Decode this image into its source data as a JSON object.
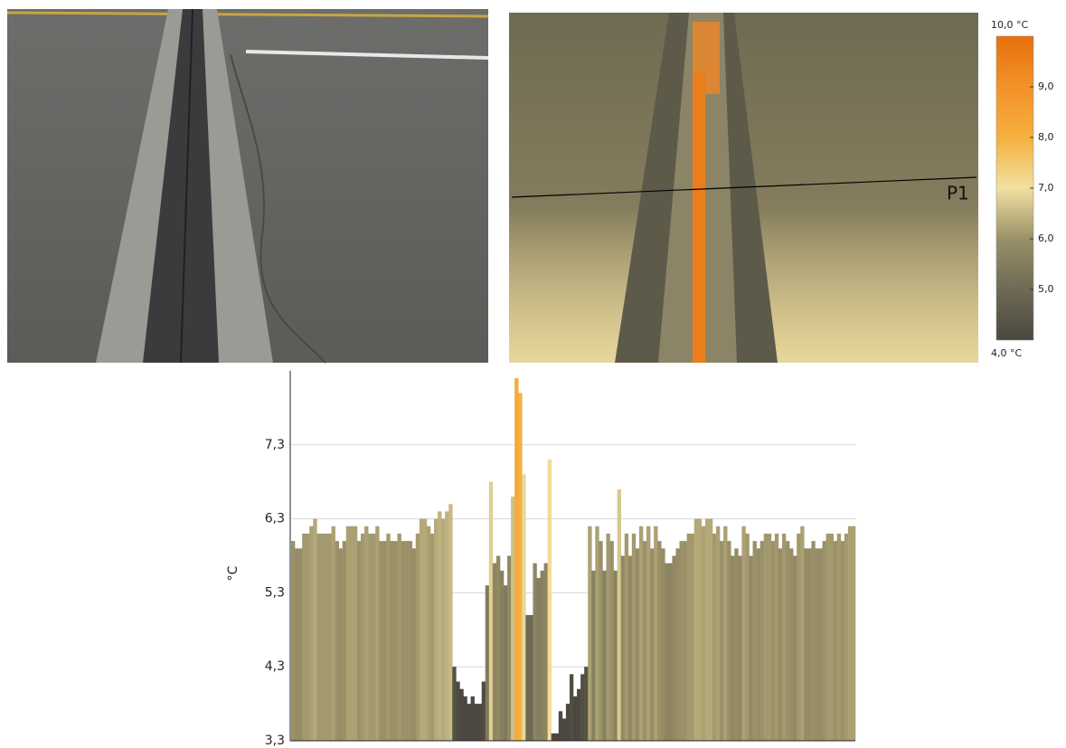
{
  "thermal_image": {
    "marker_label": "P1"
  },
  "colorbar": {
    "lim": [
      {
        "value": 4,
        "label": "4,0 °C"
      },
      {
        "value": 10,
        "label": "10,0 °C"
      }
    ],
    "ticks": [
      {
        "value": 5,
        "label": "5,0"
      },
      {
        "value": 6,
        "label": "6,0"
      },
      {
        "value": 7,
        "label": "7,0"
      },
      {
        "value": 8,
        "label": "8,0"
      },
      {
        "value": 9,
        "label": "9,0"
      }
    ],
    "colors": [
      "#4a4840",
      "#6e6a55",
      "#9a9168",
      "#f1e0a0",
      "#f5b040",
      "#f29228",
      "#e8700e"
    ]
  },
  "chart_data": {
    "type": "bar",
    "ylabel": "°C",
    "values": [
      6.0,
      5.9,
      5.9,
      6.1,
      6.1,
      6.2,
      6.3,
      6.1,
      6.1,
      6.1,
      6.1,
      6.2,
      6.0,
      5.9,
      6.0,
      6.2,
      6.2,
      6.2,
      6.0,
      6.1,
      6.2,
      6.1,
      6.1,
      6.2,
      6.0,
      6.0,
      6.1,
      6.0,
      6.0,
      6.1,
      6.0,
      6.0,
      6.0,
      5.9,
      6.1,
      6.3,
      6.3,
      6.2,
      6.1,
      6.3,
      6.4,
      6.3,
      6.4,
      6.5,
      4.3,
      4.1,
      4.0,
      3.9,
      3.8,
      3.9,
      3.8,
      3.8,
      4.1,
      5.4,
      6.8,
      5.7,
      5.8,
      5.6,
      5.4,
      5.8,
      6.6,
      8.2,
      8.0,
      6.9,
      5.0,
      5.0,
      5.7,
      5.5,
      5.6,
      5.7,
      7.1,
      3.4,
      3.4,
      3.7,
      3.6,
      3.8,
      4.2,
      3.9,
      4.0,
      4.2,
      4.3,
      6.2,
      5.6,
      6.2,
      6.0,
      5.6,
      6.1,
      6.0,
      5.6,
      6.7,
      5.8,
      6.1,
      5.8,
      6.1,
      5.9,
      6.2,
      6.0,
      6.2,
      5.9,
      6.2,
      6.0,
      5.9,
      5.7,
      5.7,
      5.8,
      5.9,
      6.0,
      6.0,
      6.1,
      6.1,
      6.3,
      6.3,
      6.2,
      6.3,
      6.3,
      6.1,
      6.2,
      6.0,
      6.2,
      6.0,
      5.8,
      5.9,
      5.8,
      6.2,
      6.1,
      5.8,
      6.0,
      5.9,
      6.0,
      6.1,
      6.1,
      6.0,
      6.1,
      5.9,
      6.1,
      6.0,
      5.9,
      5.8,
      6.1,
      6.2,
      5.9,
      5.9,
      6.0,
      5.9,
      5.9,
      6.0,
      6.1,
      6.1,
      6.0,
      6.1,
      6.0,
      6.1,
      6.2,
      6.2
    ],
    "ylim": [
      3.3,
      8.3
    ],
    "yticks": [
      {
        "value": 3.3,
        "label": "3,3"
      },
      {
        "value": 4.3,
        "label": "4,3"
      },
      {
        "value": 5.3,
        "label": "5,3"
      },
      {
        "value": 6.3,
        "label": "6,3"
      },
      {
        "value": 7.3,
        "label": "7,3"
      }
    ],
    "grid": true
  }
}
